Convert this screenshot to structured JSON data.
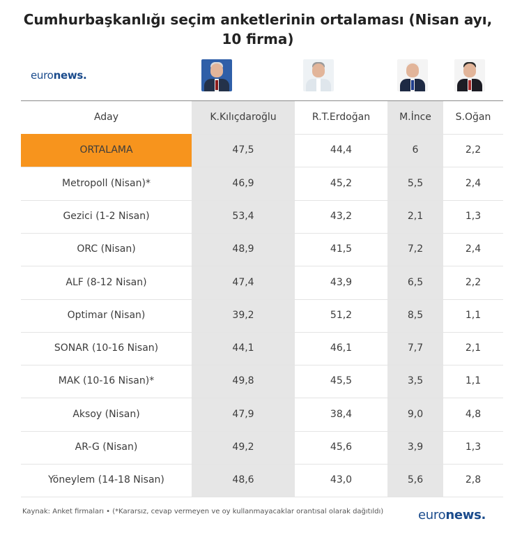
{
  "title": "Cumhurbaşkanlığı seçim anketlerinin ortalaması (Nisan ayı, 10 firma)",
  "logo": {
    "prefix": "euro",
    "bold": "news",
    "dot": "."
  },
  "headers": [
    "Aday",
    "K.Kılıçdaroğlu",
    "R.T.Erdoğan",
    "M.İnce",
    "S.Oğan"
  ],
  "rows": [
    {
      "label": "ORTALAMA",
      "values": [
        "47,5",
        "44,4",
        "6",
        "2,2"
      ]
    },
    {
      "label": "Metropoll (Nisan)*",
      "values": [
        "46,9",
        "45,2",
        "5,5",
        "2,4"
      ]
    },
    {
      "label": "Gezici (1-2 Nisan)",
      "values": [
        "53,4",
        "43,2",
        "2,1",
        "1,3"
      ]
    },
    {
      "label": "ORC (Nisan)",
      "values": [
        "48,9",
        "41,5",
        "7,2",
        "2,4"
      ]
    },
    {
      "label": "ALF (8-12 Nisan)",
      "values": [
        "47,4",
        "43,9",
        "6,5",
        "2,2"
      ]
    },
    {
      "label": "Optimar (Nisan)",
      "values": [
        "39,2",
        "51,2",
        "8,5",
        "1,1"
      ]
    },
    {
      "label": "SONAR (10-16 Nisan)",
      "values": [
        "44,1",
        "46,1",
        "7,7",
        "2,1"
      ]
    },
    {
      "label": "MAK (10-16 Nisan)*",
      "values": [
        "49,8",
        "45,5",
        "3,5",
        "1,1"
      ]
    },
    {
      "label": "Aksoy (Nisan)",
      "values": [
        "47,9",
        "38,4",
        "9,0",
        "4,8"
      ]
    },
    {
      "label": "AR-G (Nisan)",
      "values": [
        "49,2",
        "45,6",
        "3,9",
        "1,3"
      ]
    },
    {
      "label": "Yöneylem (14-18 Nisan)",
      "values": [
        "48,6",
        "43,0",
        "5,6",
        "2,8"
      ]
    }
  ],
  "footer": "Kaynak: Anket firmaları • (*Kararsız, cevap vermeyen ve oy kullanmayacaklar orantısal olarak dağıtıldı)",
  "colors": {
    "highlight": "#f7941d",
    "shade": "#e6e6e6",
    "brand": "#1a4b8c"
  },
  "chart_data": {
    "type": "table",
    "title": "Cumhurbaşkanlığı seçim anketlerinin ortalaması (Nisan ayı, 10 firma)",
    "columns": [
      "Aday",
      "K.Kılıçdaroğlu",
      "R.T.Erdoğan",
      "M.İnce",
      "S.Oğan"
    ],
    "rows": [
      [
        "ORTALAMA",
        47.5,
        44.4,
        6,
        2.2
      ],
      [
        "Metropoll (Nisan)*",
        46.9,
        45.2,
        5.5,
        2.4
      ],
      [
        "Gezici (1-2 Nisan)",
        53.4,
        43.2,
        2.1,
        1.3
      ],
      [
        "ORC (Nisan)",
        48.9,
        41.5,
        7.2,
        2.4
      ],
      [
        "ALF (8-12 Nisan)",
        47.4,
        43.9,
        6.5,
        2.2
      ],
      [
        "Optimar (Nisan)",
        39.2,
        51.2,
        8.5,
        1.1
      ],
      [
        "SONAR (10-16 Nisan)",
        44.1,
        46.1,
        7.7,
        2.1
      ],
      [
        "MAK (10-16 Nisan)*",
        49.8,
        45.5,
        3.5,
        1.1
      ],
      [
        "Aksoy (Nisan)",
        47.9,
        38.4,
        9.0,
        4.8
      ],
      [
        "AR-G (Nisan)",
        49.2,
        45.6,
        3.9,
        1.3
      ],
      [
        "Yöneylem (14-18 Nisan)",
        48.6,
        43.0,
        5.6,
        2.8
      ]
    ]
  }
}
